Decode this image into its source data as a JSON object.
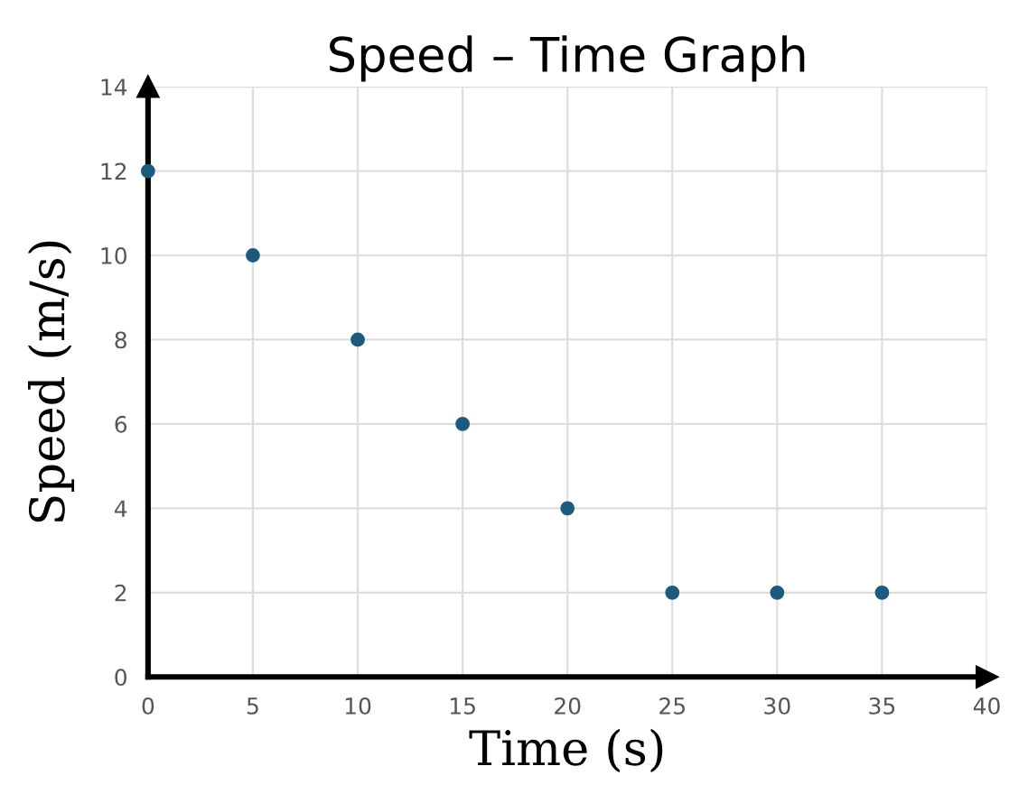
{
  "chart_data": {
    "type": "scatter",
    "title": "Speed – Time Graph",
    "xlabel": "Time (s)",
    "ylabel": "Speed (m/s)",
    "x": [
      0,
      5,
      10,
      15,
      20,
      25,
      30,
      35
    ],
    "series": [
      {
        "color": "#1d5b7e",
        "values": [
          12,
          10,
          8,
          6,
          4,
          2,
          2,
          2
        ]
      }
    ],
    "xlim": [
      0,
      40
    ],
    "ylim": [
      0,
      14
    ],
    "xticks": [
      0,
      5,
      10,
      15,
      20,
      25,
      30,
      35,
      40
    ],
    "yticks": [
      0,
      2,
      4,
      6,
      8,
      10,
      12,
      14
    ],
    "grid": true,
    "marker": "circle"
  }
}
